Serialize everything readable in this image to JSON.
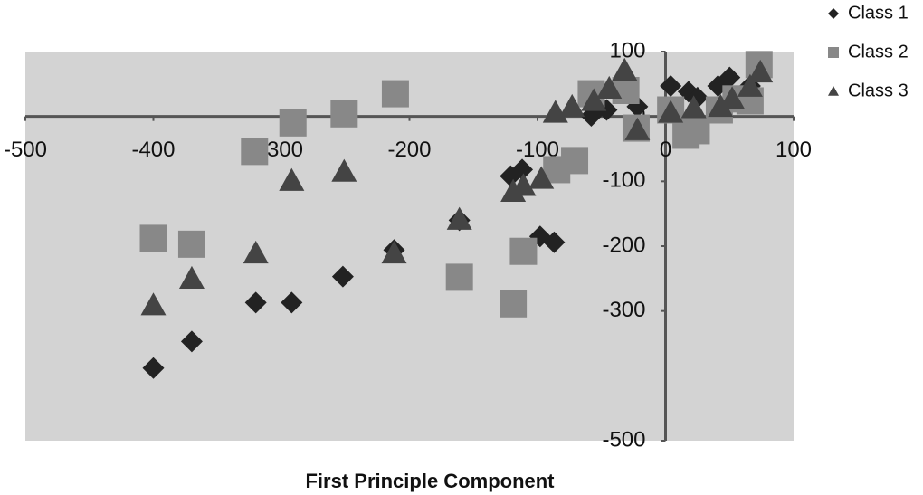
{
  "chart_data": {
    "type": "scatter",
    "x_label": "First Principle Component",
    "xlim": [
      -500,
      100
    ],
    "xticks": [
      -500,
      -400,
      -300,
      -200,
      -100,
      0,
      100
    ],
    "ylim": [
      -500,
      100
    ],
    "yticks": [
      100,
      0,
      -100,
      -200,
      -300,
      -500
    ],
    "background": "#d3d3d3",
    "series": [
      {
        "name": "Class 1",
        "color": "#222222",
        "marker": "diamond",
        "x": [
          -400,
          -370,
          -320,
          -292,
          -252,
          -212,
          -161,
          -121,
          -112,
          -98,
          -87,
          -58,
          -46,
          -22,
          4,
          18,
          25,
          41,
          50,
          66
        ],
        "values": [
          -388,
          -347,
          -287,
          -287,
          -247,
          -206,
          -160,
          -92,
          -82,
          -185,
          -194,
          1,
          10,
          15,
          47,
          38,
          29,
          47,
          60,
          47
        ]
      },
      {
        "name": "Class 2",
        "color": "#888888",
        "marker": "square",
        "x": [
          -400,
          -370,
          -321,
          -291,
          -251,
          -211,
          -161,
          -119,
          -111,
          -85,
          -71,
          -58,
          -31,
          -23,
          4,
          16,
          24,
          42,
          55,
          66,
          73
        ],
        "values": [
          -188,
          -197,
          -54,
          -10,
          4,
          35,
          -248,
          -289,
          -208,
          -82,
          -68,
          35,
          40,
          -18,
          10,
          -29,
          -22,
          10,
          27,
          24,
          80
        ]
      },
      {
        "name": "Class 3",
        "color": "#444444",
        "marker": "triangle",
        "x": [
          -400,
          -370,
          -320,
          -292,
          -251,
          -212,
          -161,
          -119,
          -111,
          -97,
          -86,
          -73,
          -56,
          -44,
          -32,
          -22,
          4,
          22,
          43,
          52,
          66,
          74
        ],
        "values": [
          -291,
          -250,
          -211,
          -99,
          -85,
          -211,
          -159,
          -116,
          -107,
          -96,
          6,
          15,
          24,
          43,
          71,
          -21,
          6,
          13,
          15,
          27,
          46,
          68
        ]
      }
    ]
  }
}
